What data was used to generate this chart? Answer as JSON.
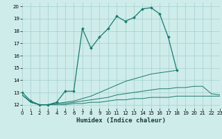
{
  "title": "",
  "xlabel": "Humidex (Indice chaleur)",
  "background_color": "#ceecea",
  "grid_color": "#aad4d0",
  "line_color": "#1a7a6e",
  "series": {
    "main": {
      "x": [
        0,
        1,
        2,
        3,
        4,
        5,
        6,
        7,
        8,
        9,
        10,
        11,
        12,
        13,
        14,
        15,
        16,
        17,
        18
      ],
      "y": [
        13.0,
        12.3,
        12.0,
        12.0,
        12.2,
        13.1,
        13.1,
        18.2,
        16.6,
        17.5,
        18.2,
        19.2,
        18.8,
        19.1,
        19.8,
        19.9,
        19.4,
        17.5,
        14.8
      ]
    },
    "line1": {
      "x": [
        0,
        1,
        2,
        3,
        4,
        5,
        6,
        7,
        8,
        9,
        10,
        11,
        12,
        13,
        14,
        15,
        16,
        17,
        18
      ],
      "y": [
        12.8,
        12.2,
        12.0,
        12.0,
        12.1,
        12.2,
        12.3,
        12.5,
        12.7,
        13.0,
        13.3,
        13.6,
        13.9,
        14.1,
        14.3,
        14.5,
        14.6,
        14.7,
        14.8
      ]
    },
    "line2": {
      "x": [
        0,
        1,
        2,
        3,
        4,
        5,
        6,
        7,
        8,
        9,
        10,
        11,
        12,
        13,
        14,
        15,
        16,
        17,
        18,
        19,
        20,
        21,
        22,
        23
      ],
      "y": [
        12.8,
        12.2,
        12.0,
        12.0,
        12.1,
        12.1,
        12.2,
        12.3,
        12.4,
        12.5,
        12.6,
        12.8,
        12.9,
        13.0,
        13.1,
        13.2,
        13.3,
        13.3,
        13.4,
        13.4,
        13.5,
        13.5,
        12.9,
        12.8
      ]
    },
    "line3": {
      "x": [
        0,
        1,
        2,
        3,
        4,
        5,
        6,
        7,
        8,
        9,
        10,
        11,
        12,
        13,
        14,
        15,
        16,
        17,
        18,
        19,
        20,
        21,
        22,
        23
      ],
      "y": [
        12.8,
        12.2,
        12.0,
        12.0,
        12.0,
        12.0,
        12.1,
        12.1,
        12.2,
        12.2,
        12.3,
        12.4,
        12.4,
        12.5,
        12.5,
        12.6,
        12.6,
        12.6,
        12.7,
        12.7,
        12.7,
        12.7,
        12.7,
        12.7
      ]
    }
  },
  "xlim": [
    0,
    23
  ],
  "ylim": [
    11.7,
    20.3
  ],
  "yticks": [
    12,
    13,
    14,
    15,
    16,
    17,
    18,
    19,
    20
  ],
  "xticks": [
    0,
    1,
    2,
    3,
    4,
    5,
    6,
    7,
    8,
    9,
    10,
    11,
    12,
    13,
    14,
    15,
    16,
    17,
    18,
    19,
    20,
    21,
    22,
    23
  ],
  "tick_fontsize": 5.0,
  "xlabel_fontsize": 6.5
}
